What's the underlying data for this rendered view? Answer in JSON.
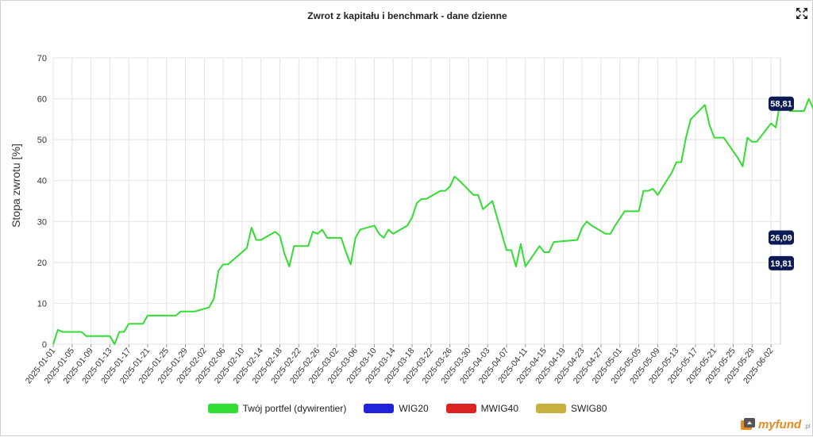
{
  "chart_data": {
    "type": "line",
    "title": "Zwrot z kapitału i benchmark - dane dzienne",
    "ylabel": "Stopa zwrotu [%]",
    "xlabel": "",
    "ylim": [
      0,
      70
    ],
    "yticks": [
      0,
      10,
      20,
      30,
      40,
      50,
      60,
      70
    ],
    "x_start": "2025-01-01",
    "x_end": "2025-06-04",
    "xticks": [
      "2025-01-01",
      "2025-01-05",
      "2025-01-09",
      "2025-01-13",
      "2025-01-17",
      "2025-01-21",
      "2025-01-25",
      "2025-01-29",
      "2025-02-02",
      "2025-02-06",
      "2025-02-10",
      "2025-02-14",
      "2025-02-18",
      "2025-02-22",
      "2025-02-26",
      "2025-03-02",
      "2025-03-06",
      "2025-03-10",
      "2025-03-14",
      "2025-03-18",
      "2025-03-22",
      "2025-03-26",
      "2025-03-30",
      "2025-04-03",
      "2025-04-07",
      "2025-04-11",
      "2025-04-15",
      "2025-04-19",
      "2025-04-23",
      "2025-04-27",
      "2025-05-01",
      "2025-05-05",
      "2025-05-09",
      "2025-05-13",
      "2025-05-17",
      "2025-05-21",
      "2025-05-25",
      "2025-05-29",
      "2025-06-02"
    ],
    "grid": true,
    "legend_position": "bottom",
    "series": [
      {
        "name": "Twój portfel (dywirentier)",
        "color": "#33dd33",
        "end_label": "58,81",
        "points": [
          [
            "2025-01-01",
            0
          ],
          [
            "2025-01-02",
            3.5
          ],
          [
            "2025-01-03",
            3
          ],
          [
            "2025-01-06",
            3
          ],
          [
            "2025-01-07",
            3
          ],
          [
            "2025-01-08",
            2
          ],
          [
            "2025-01-09",
            2
          ],
          [
            "2025-01-10",
            2
          ],
          [
            "2025-01-13",
            2
          ],
          [
            "2025-01-14",
            0
          ],
          [
            "2025-01-15",
            3
          ],
          [
            "2025-01-16",
            3
          ],
          [
            "2025-01-17",
            5
          ],
          [
            "2025-01-20",
            5
          ],
          [
            "2025-01-21",
            7
          ],
          [
            "2025-01-22",
            7
          ],
          [
            "2025-01-23",
            7
          ],
          [
            "2025-01-24",
            7
          ],
          [
            "2025-01-27",
            7
          ],
          [
            "2025-01-28",
            8
          ],
          [
            "2025-01-29",
            8
          ],
          [
            "2025-01-30",
            8
          ],
          [
            "2025-01-31",
            8
          ],
          [
            "2025-02-03",
            9
          ],
          [
            "2025-02-04",
            11
          ],
          [
            "2025-02-05",
            18
          ],
          [
            "2025-02-06",
            19.5
          ],
          [
            "2025-02-07",
            19.5
          ],
          [
            "2025-02-10",
            22.5
          ],
          [
            "2025-02-11",
            23.5
          ],
          [
            "2025-02-12",
            28.5
          ],
          [
            "2025-02-13",
            25.5
          ],
          [
            "2025-02-14",
            25.5
          ],
          [
            "2025-02-17",
            27.5
          ],
          [
            "2025-02-18",
            26.5
          ],
          [
            "2025-02-19",
            22
          ],
          [
            "2025-02-20",
            19
          ],
          [
            "2025-02-21",
            24
          ],
          [
            "2025-02-24",
            24
          ],
          [
            "2025-02-25",
            27.5
          ],
          [
            "2025-02-26",
            27
          ],
          [
            "2025-02-27",
            28
          ],
          [
            "2025-02-28",
            26
          ],
          [
            "2025-03-03",
            26
          ],
          [
            "2025-03-04",
            22.5
          ],
          [
            "2025-03-05",
            19.5
          ],
          [
            "2025-03-06",
            26
          ],
          [
            "2025-03-07",
            28
          ],
          [
            "2025-03-10",
            29
          ],
          [
            "2025-03-11",
            27
          ],
          [
            "2025-03-12",
            26
          ],
          [
            "2025-03-13",
            28
          ],
          [
            "2025-03-14",
            27
          ],
          [
            "2025-03-17",
            29
          ],
          [
            "2025-03-18",
            31
          ],
          [
            "2025-03-19",
            34.5
          ],
          [
            "2025-03-20",
            35.5
          ],
          [
            "2025-03-21",
            35.5
          ],
          [
            "2025-03-24",
            37.5
          ],
          [
            "2025-03-25",
            37.5
          ],
          [
            "2025-03-26",
            38.5
          ],
          [
            "2025-03-27",
            41
          ],
          [
            "2025-03-28",
            40
          ],
          [
            "2025-03-31",
            36.5
          ],
          [
            "2025-04-01",
            36.5
          ],
          [
            "2025-04-02",
            33
          ],
          [
            "2025-04-03",
            34
          ],
          [
            "2025-04-04",
            35
          ],
          [
            "2025-04-07",
            23
          ],
          [
            "2025-04-08",
            23
          ],
          [
            "2025-04-09",
            19
          ],
          [
            "2025-04-10",
            24.5
          ],
          [
            "2025-04-11",
            19
          ],
          [
            "2025-04-14",
            24
          ],
          [
            "2025-04-15",
            22.5
          ],
          [
            "2025-04-16",
            22.5
          ],
          [
            "2025-04-17",
            25
          ],
          [
            "2025-04-22",
            25.5
          ],
          [
            "2025-04-23",
            28.5
          ],
          [
            "2025-04-24",
            30
          ],
          [
            "2025-04-25",
            29
          ],
          [
            "2025-04-28",
            27
          ],
          [
            "2025-04-29",
            27
          ],
          [
            "2025-04-30",
            29
          ],
          [
            "2025-05-02",
            32.5
          ],
          [
            "2025-05-05",
            32.5
          ],
          [
            "2025-05-06",
            37.5
          ],
          [
            "2025-05-07",
            37.5
          ],
          [
            "2025-05-08",
            38
          ],
          [
            "2025-05-09",
            36.5
          ],
          [
            "2025-05-12",
            42
          ],
          [
            "2025-05-13",
            44.5
          ],
          [
            "2025-05-14",
            44.5
          ],
          [
            "2025-05-15",
            50.5
          ],
          [
            "2025-05-16",
            55
          ],
          [
            "2025-05-19",
            58.5
          ],
          [
            "2025-05-20",
            53.5
          ],
          [
            "2025-05-21",
            50.5
          ],
          [
            "2025-05-22",
            50.5
          ],
          [
            "2025-05-23",
            50.5
          ],
          [
            "2025-05-26",
            45.5
          ],
          [
            "2025-05-27",
            43.5
          ],
          [
            "2025-05-28",
            50.5
          ],
          [
            "2025-05-29",
            49.5
          ],
          [
            "2025-05-30",
            49.5
          ],
          [
            "2025-06-02",
            54
          ],
          [
            "2025-06-03",
            53
          ],
          [
            "2025-06-04",
            59.5
          ],
          [
            "2025-06-05",
            58
          ],
          [
            "2025-06-06",
            57
          ],
          [
            "2025-06-09",
            57
          ],
          [
            "2025-06-10",
            60
          ],
          [
            "2025-06-11",
            57.5
          ],
          [
            "2025-06-12",
            58.81
          ]
        ]
      },
      {
        "name": "WIG20",
        "color": "#2222dd",
        "end_label": "26,09",
        "points": []
      },
      {
        "name": "MWIG40",
        "color": "#dd2222",
        "end_label": "",
        "points": []
      },
      {
        "name": "SWIG80",
        "color": "#c8b040",
        "end_label": "19,81",
        "points": []
      }
    ]
  },
  "icons": {
    "fullscreen": "fullscreen-icon"
  },
  "logo": {
    "text": "myfund",
    "suffix": ".pl"
  }
}
